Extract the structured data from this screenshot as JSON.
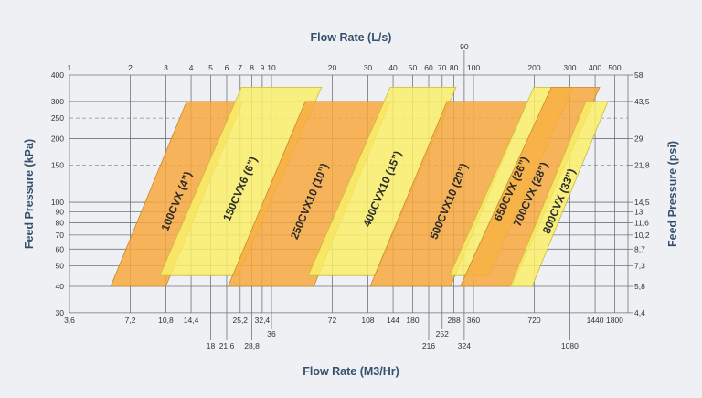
{
  "chart_data": {
    "type": "area",
    "x_top": {
      "label": "Flow Rate (L/s)",
      "scale": "log",
      "range": [
        1,
        570
      ],
      "ticks": [
        1,
        2,
        3,
        4,
        5,
        6,
        7,
        8,
        9,
        10,
        20,
        30,
        40,
        50,
        60,
        70,
        80,
        90,
        100,
        200,
        300,
        400,
        500
      ]
    },
    "x_bottom": {
      "label": "Flow Rate (M3/Hr)",
      "ticks": [
        {
          "value": 1,
          "label": "3,6"
        },
        {
          "value": 2,
          "label": "7,2"
        },
        {
          "value": 3,
          "label": "10,8"
        },
        {
          "value": 4,
          "label": "14,4"
        },
        {
          "value": 5,
          "label": "18"
        },
        {
          "value": 6,
          "label": "21,6"
        },
        {
          "value": 7,
          "label": "25,2"
        },
        {
          "value": 8,
          "label": "28,8"
        },
        {
          "value": 9,
          "label": "32,4"
        },
        {
          "value": 10,
          "label": "36"
        },
        {
          "value": 20,
          "label": "72"
        },
        {
          "value": 30,
          "label": "108"
        },
        {
          "value": 40,
          "label": "144"
        },
        {
          "value": 50,
          "label": "180"
        },
        {
          "value": 60,
          "label": "216"
        },
        {
          "value": 70,
          "label": "252"
        },
        {
          "value": 80,
          "label": "288"
        },
        {
          "value": 90,
          "label": "324"
        },
        {
          "value": 100,
          "label": "360"
        },
        {
          "value": 200,
          "label": "720"
        },
        {
          "value": 300,
          "label": "1080"
        },
        {
          "value": 400,
          "label": "1440"
        },
        {
          "value": 500,
          "label": "1800"
        }
      ]
    },
    "y_left": {
      "label": "Feed Pressure (kPa)",
      "scale": "log",
      "range": [
        30,
        400
      ],
      "ticks": [
        400,
        300,
        250,
        200,
        150,
        100,
        90,
        80,
        70,
        60,
        50,
        40,
        30
      ],
      "dashed": [
        250,
        150
      ]
    },
    "y_right": {
      "label": "Feed Pressure (psi)",
      "ticks": [
        {
          "kpa": 400,
          "label": "58"
        },
        {
          "kpa": 300,
          "label": "43,5"
        },
        {
          "kpa": 200,
          "label": "29"
        },
        {
          "kpa": 150,
          "label": "21,8"
        },
        {
          "kpa": 100,
          "label": "14,5"
        },
        {
          "kpa": 90,
          "label": "13"
        },
        {
          "kpa": 80,
          "label": "11,6"
        },
        {
          "kpa": 70,
          "label": "10,2"
        },
        {
          "kpa": 60,
          "label": "8,7"
        },
        {
          "kpa": 50,
          "label": "7,3"
        },
        {
          "kpa": 40,
          "label": "5,8"
        },
        {
          "kpa": 30,
          "label": "4,4"
        }
      ]
    },
    "grid": true,
    "colors": {
      "orange": "#f7a83e",
      "yellow": "#f9ee6a"
    },
    "series": [
      {
        "name": "100CVX (4”)",
        "color": "orange",
        "p_bottom": 40,
        "p_top": 300,
        "flow_bottom": [
          1.6,
          3.0
        ],
        "flow_top": [
          3.8,
          7.2
        ]
      },
      {
        "name": "150CVX6 (6”)",
        "color": "yellow",
        "p_bottom": 45,
        "p_top": 350,
        "flow_bottom": [
          2.8,
          6.8
        ],
        "flow_top": [
          7.1,
          17.7
        ]
      },
      {
        "name": "250CVX10 (10”)",
        "color": "orange",
        "p_bottom": 40,
        "p_top": 300,
        "flow_bottom": [
          6.1,
          16.2
        ],
        "flow_top": [
          14.7,
          38.7
        ]
      },
      {
        "name": "400CVX10 (15”)",
        "color": "yellow",
        "p_bottom": 45,
        "p_top": 350,
        "flow_bottom": [
          15.2,
          32.5
        ],
        "flow_top": [
          38.7,
          82
        ]
      },
      {
        "name": "500CVX10 (20”)",
        "color": "orange",
        "p_bottom": 40,
        "p_top": 300,
        "flow_bottom": [
          30.8,
          77
        ],
        "flow_top": [
          74,
          185
        ]
      },
      {
        "name": "650CVX (26”)",
        "color": "yellow",
        "p_bottom": 45,
        "p_top": 350,
        "flow_bottom": [
          76,
          119
        ],
        "flow_top": [
          199,
          311
        ]
      },
      {
        "name": "700CVX (28”)",
        "color": "orange",
        "p_bottom": 40,
        "p_top": 350,
        "flow_bottom": [
          86,
          155
        ],
        "flow_top": [
          243,
          421
        ]
      },
      {
        "name": "800CVX (33”)",
        "color": "yellow",
        "p_bottom": 40,
        "p_top": 300,
        "flow_bottom": [
          152,
          195
        ],
        "flow_top": [
          360,
          463
        ]
      }
    ]
  }
}
